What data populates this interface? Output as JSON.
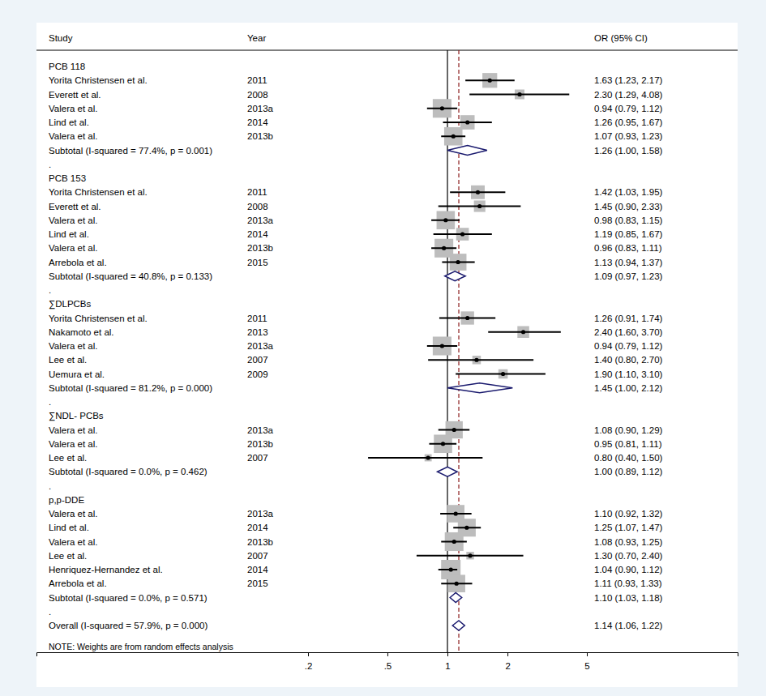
{
  "chart_data": {
    "type": "forest",
    "headers": {
      "study": "Study",
      "year": "Year",
      "estimate": "OR (95% CI)"
    },
    "log": "x",
    "xlim": [
      0.0087,
      28.5
    ],
    "xticks": [
      {
        "value": 0.2,
        "label": ".2"
      },
      {
        "value": 0.5,
        "label": ".5"
      },
      1,
      2,
      5
    ],
    "reference": 1,
    "spacer": ".",
    "groups": [
      {
        "name": "PCB 118",
        "studies": [
          {
            "study": "Yorita Christensen et al.",
            "year": "2011",
            "or": 1.63,
            "lower": 1.23,
            "upper": 2.17,
            "weight": 3.0,
            "value_label": "1.63 (1.23, 2.17)"
          },
          {
            "study": "Everett et al.",
            "year": "2008",
            "or": 2.3,
            "lower": 1.29,
            "upper": 4.08,
            "weight": 1.3,
            "value_label": "2.30 (1.29, 4.08)"
          },
          {
            "study": "Valera et al.",
            "year": "2013a",
            "or": 0.94,
            "lower": 0.79,
            "upper": 1.12,
            "weight": 4.8,
            "value_label": "0.94 (0.79, 1.12)"
          },
          {
            "study": "Lind et al.",
            "year": "2014",
            "or": 1.26,
            "lower": 0.95,
            "upper": 1.67,
            "weight": 2.8,
            "value_label": "1.26 (0.95, 1.67)"
          },
          {
            "study": "Valera et al.",
            "year": "2013b",
            "or": 1.07,
            "lower": 0.93,
            "upper": 1.23,
            "weight": 4.6,
            "value_label": "1.07 (0.93, 1.23)"
          }
        ],
        "subtotal": {
          "label": "Subtotal  (I-squared = 77.4%, p = 0.001)",
          "or": 1.26,
          "lower": 1.0,
          "upper": 1.58,
          "value_label": "1.26 (1.00, 1.58)"
        }
      },
      {
        "name": "PCB 153",
        "studies": [
          {
            "study": "Yorita Christensen et al.",
            "year": "2011",
            "or": 1.42,
            "lower": 1.03,
            "upper": 1.95,
            "weight": 2.6,
            "value_label": "1.42 (1.03, 1.95)"
          },
          {
            "study": "Everett et al.",
            "year": "2008",
            "or": 1.45,
            "lower": 0.9,
            "upper": 2.33,
            "weight": 1.8,
            "value_label": "1.45 (0.90, 2.33)"
          },
          {
            "study": "Valera et al.",
            "year": "2013a",
            "or": 0.98,
            "lower": 0.83,
            "upper": 1.15,
            "weight": 4.6,
            "value_label": "0.98 (0.83, 1.15)"
          },
          {
            "study": "Lind et al.",
            "year": "2014",
            "or": 1.19,
            "lower": 0.85,
            "upper": 1.67,
            "weight": 2.2,
            "value_label": "1.19 (0.85, 1.67)"
          },
          {
            "study": "Valera et al.",
            "year": "2013b",
            "or": 0.96,
            "lower": 0.83,
            "upper": 1.11,
            "weight": 4.8,
            "value_label": "0.96 (0.83, 1.11)"
          },
          {
            "study": "Arrebola et al.",
            "year": "2015",
            "or": 1.13,
            "lower": 0.94,
            "upper": 1.37,
            "weight": 3.9,
            "value_label": "1.13 (0.94, 1.37)"
          }
        ],
        "subtotal": {
          "label": "Subtotal  (I-squared = 40.8%, p = 0.133)",
          "or": 1.09,
          "lower": 0.97,
          "upper": 1.23,
          "value_label": "1.09 (0.97, 1.23)"
        }
      },
      {
        "name": "∑DLPCBs",
        "studies": [
          {
            "study": "Yorita Christensen et al.",
            "year": "2011",
            "or": 1.26,
            "lower": 0.91,
            "upper": 1.74,
            "weight": 2.4,
            "value_label": "1.26 (0.91, 1.74)"
          },
          {
            "study": "Nakamoto et al.",
            "year": "2013",
            "or": 2.4,
            "lower": 1.6,
            "upper": 3.7,
            "weight": 1.9,
            "value_label": "2.40 (1.60, 3.70)"
          },
          {
            "study": "Valera et al.",
            "year": "2013a",
            "or": 0.94,
            "lower": 0.79,
            "upper": 1.12,
            "weight": 4.8,
            "value_label": "0.94 (0.79, 1.12)"
          },
          {
            "study": "Lee et al.",
            "year": "2007",
            "or": 1.4,
            "lower": 0.8,
            "upper": 2.7,
            "weight": 1.0,
            "value_label": "1.40 (0.80, 2.70)"
          },
          {
            "study": "Uemura et al.",
            "year": "2009",
            "or": 1.9,
            "lower": 1.1,
            "upper": 3.1,
            "weight": 1.2,
            "value_label": "1.90 (1.10, 3.10)"
          }
        ],
        "subtotal": {
          "label": "Subtotal  (I-squared = 81.2%, p = 0.000)",
          "or": 1.45,
          "lower": 1.0,
          "upper": 2.12,
          "value_label": "1.45 (1.00, 2.12)"
        }
      },
      {
        "name": "∑NDL- PCBs",
        "studies": [
          {
            "study": "Valera et al.",
            "year": "2013a",
            "or": 1.08,
            "lower": 0.9,
            "upper": 1.29,
            "weight": 4.1,
            "value_label": "1.08 (0.90, 1.29)"
          },
          {
            "study": "Valera et al.",
            "year": "2013b",
            "or": 0.95,
            "lower": 0.81,
            "upper": 1.11,
            "weight": 4.6,
            "value_label": "0.95 (0.81, 1.11)"
          },
          {
            "study": "Lee et al.",
            "year": "2007",
            "or": 0.8,
            "lower": 0.4,
            "upper": 1.5,
            "weight": 0.7,
            "value_label": "0.80 (0.40, 1.50)"
          }
        ],
        "subtotal": {
          "label": "Subtotal  (I-squared = 0.0%, p = 0.462)",
          "or": 1.0,
          "lower": 0.89,
          "upper": 1.12,
          "value_label": "1.00 (0.89, 1.12)"
        }
      },
      {
        "name": "p,p-DDE",
        "studies": [
          {
            "study": "Valera et al.",
            "year": "2013a",
            "or": 1.1,
            "lower": 0.92,
            "upper": 1.32,
            "weight": 4.2,
            "value_label": "1.10 (0.92, 1.32)"
          },
          {
            "study": "Lind et al.",
            "year": "2014",
            "or": 1.25,
            "lower": 1.07,
            "upper": 1.47,
            "weight": 4.4,
            "value_label": "1.25 (1.07, 1.47)"
          },
          {
            "study": "Valera et al.",
            "year": "2013b",
            "or": 1.08,
            "lower": 0.93,
            "upper": 1.25,
            "weight": 4.8,
            "value_label": "1.08 (0.93, 1.25)"
          },
          {
            "study": "Lee et al.",
            "year": "2007",
            "or": 1.3,
            "lower": 0.7,
            "upper": 2.4,
            "weight": 0.8,
            "value_label": "1.30 (0.70, 2.40)"
          },
          {
            "study": "Henriquez-Hernandez et al.",
            "year": "2014",
            "or": 1.04,
            "lower": 0.9,
            "upper": 1.12,
            "weight": 5.2,
            "value_label": "1.04 (0.90, 1.12)"
          },
          {
            "study": "Arrebola et al.",
            "year": "2015",
            "or": 1.11,
            "lower": 0.93,
            "upper": 1.33,
            "weight": 4.2,
            "value_label": "1.11 (0.93, 1.33)"
          }
        ],
        "subtotal": {
          "label": "Subtotal  (I-squared = 0.0%, p = 0.571)",
          "or": 1.1,
          "lower": 1.03,
          "upper": 1.18,
          "value_label": "1.10 (1.03, 1.18)"
        }
      }
    ],
    "overall": {
      "label": "Overall  (I-squared = 57.9%, p = 0.000)",
      "or": 1.14,
      "lower": 1.06,
      "upper": 1.22,
      "value_label": "1.14 (1.06, 1.22)"
    },
    "footnote": "NOTE: Weights are from random effects analysis"
  }
}
